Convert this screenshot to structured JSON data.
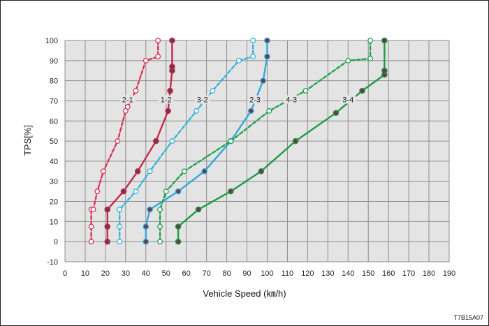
{
  "chart_data": {
    "type": "line",
    "title": "",
    "xlabel": "Vehicle Speed (㎞/h)",
    "ylabel": "TPS[%]",
    "xlim": [
      0,
      190
    ],
    "ylim": [
      -10,
      100
    ],
    "xticks": [
      0,
      10,
      20,
      30,
      40,
      50,
      60,
      70,
      80,
      90,
      100,
      110,
      120,
      130,
      140,
      150,
      160,
      170,
      180,
      190
    ],
    "yticks": [
      -10,
      0,
      10,
      20,
      30,
      40,
      50,
      60,
      70,
      80,
      90,
      100
    ],
    "grid": true,
    "legend": "none",
    "figure_code": "T7B15A07",
    "series": [
      {
        "name": "2-1",
        "style": "dashed",
        "marker": "open",
        "color": "#d8345a",
        "label_at": [
          31,
          70
        ],
        "x": [
          13,
          13,
          13,
          14,
          16,
          19,
          26,
          30,
          31,
          35,
          40,
          46,
          46
        ],
        "y": [
          0,
          7.5,
          16,
          16,
          25,
          35,
          50,
          65,
          67,
          75,
          90,
          92,
          100
        ]
      },
      {
        "name": "1-2",
        "style": "solid",
        "marker": "filled",
        "color": "#c8284e",
        "label_at": [
          50,
          70
        ],
        "x": [
          21,
          21,
          21,
          29,
          36,
          45,
          51,
          52,
          53,
          53,
          53
        ],
        "y": [
          0,
          7.5,
          16,
          25,
          35,
          50,
          65,
          75,
          85,
          87,
          100
        ]
      },
      {
        "name": "3-2",
        "style": "dashed",
        "marker": "open",
        "color": "#34b4dc",
        "label_at": [
          68,
          70
        ],
        "x": [
          27,
          27,
          27,
          35,
          42,
          53,
          65,
          73,
          86,
          93,
          93
        ],
        "y": [
          0,
          7.5,
          16,
          25,
          35,
          50,
          65,
          75,
          90,
          92,
          100
        ]
      },
      {
        "name": "2-3",
        "style": "solid",
        "marker": "filled",
        "color": "#30a8dc",
        "label_at": [
          94,
          70
        ],
        "x": [
          40,
          40,
          42,
          56,
          69,
          82,
          92,
          98,
          100,
          100
        ],
        "y": [
          0,
          7.5,
          16,
          25,
          35,
          50,
          65,
          80,
          92,
          100
        ]
      },
      {
        "name": "4-3",
        "style": "dashed",
        "marker": "open",
        "color": "#22a050",
        "label_at": [
          112,
          70
        ],
        "x": [
          47,
          47,
          47,
          50,
          59,
          82,
          101,
          119,
          140,
          151,
          151
        ],
        "y": [
          0,
          7.5,
          16,
          25,
          35,
          50,
          65,
          75,
          90,
          91,
          100
        ]
      },
      {
        "name": "3-4",
        "style": "solid",
        "marker": "filled",
        "color": "#1e9a48",
        "label_at": [
          140,
          70
        ],
        "x": [
          56,
          56,
          66,
          82,
          97,
          114,
          134,
          147,
          158,
          158,
          158
        ],
        "y": [
          0,
          7.5,
          16,
          25,
          35,
          50,
          64,
          75,
          83,
          85,
          100
        ]
      }
    ]
  }
}
